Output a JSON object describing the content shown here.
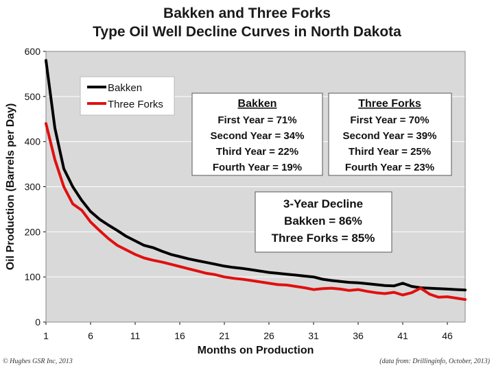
{
  "chart_data": {
    "type": "line",
    "title": "Bakken and Three Forks",
    "subtitle": "Type Oil Well Decline Curves in North Dakota",
    "xlabel": "Months on Production",
    "ylabel": "Oil Production (Barrels per Day)",
    "xlim": [
      1,
      48
    ],
    "ylim": [
      0,
      600
    ],
    "x_ticks": [
      1,
      6,
      11,
      16,
      21,
      26,
      31,
      36,
      41,
      46
    ],
    "y_ticks": [
      0,
      100,
      200,
      300,
      400,
      500,
      600
    ],
    "grid": true,
    "legend_position": "top-left",
    "x": [
      1,
      2,
      3,
      4,
      5,
      6,
      7,
      8,
      9,
      10,
      11,
      12,
      13,
      14,
      15,
      16,
      17,
      18,
      19,
      20,
      21,
      22,
      23,
      24,
      25,
      26,
      27,
      28,
      29,
      30,
      31,
      32,
      33,
      34,
      35,
      36,
      37,
      38,
      39,
      40,
      41,
      42,
      43,
      44,
      45,
      46,
      47,
      48
    ],
    "series": [
      {
        "name": "Bakken",
        "color": "#000000",
        "values": [
          580,
          430,
          340,
          300,
          270,
          245,
          228,
          215,
          203,
          190,
          180,
          170,
          165,
          157,
          150,
          145,
          140,
          136,
          132,
          128,
          124,
          121,
          119,
          116,
          113,
          110,
          108,
          106,
          104,
          102,
          100,
          95,
          92,
          90,
          88,
          87,
          85,
          83,
          81,
          80,
          86,
          79,
          76,
          75,
          74,
          73,
          72,
          71
        ]
      },
      {
        "name": "Three Forks",
        "color": "#e0100f",
        "values": [
          440,
          360,
          300,
          262,
          248,
          222,
          203,
          185,
          170,
          160,
          150,
          142,
          137,
          133,
          128,
          123,
          118,
          113,
          108,
          105,
          100,
          97,
          95,
          92,
          89,
          86,
          83,
          82,
          79,
          76,
          72,
          74,
          75,
          73,
          70,
          72,
          68,
          65,
          63,
          66,
          60,
          65,
          75,
          62,
          55,
          56,
          53,
          50
        ]
      }
    ],
    "annotations": [
      {
        "id": "bakken-box",
        "heading": "Bakken",
        "lines": [
          "First Year = 71%",
          "Second Year = 34%",
          "Third Year = 22%",
          "Fourth Year = 19%"
        ]
      },
      {
        "id": "threeforks-box",
        "heading": "Three Forks",
        "lines": [
          "First Year = 70%",
          "Second Year = 39%",
          "Third Year = 25%",
          "Fourth Year = 23%"
        ]
      },
      {
        "id": "decline-box",
        "heading": "",
        "lines": [
          "3-Year Decline",
          "Bakken = 86%",
          "Three Forks = 85%"
        ]
      }
    ],
    "plot_background": "#d9d9d9"
  },
  "footer": {
    "left": "© Hughes GSR Inc, 2013",
    "right": "(data from: Drillinginfo, October, 2013)"
  }
}
